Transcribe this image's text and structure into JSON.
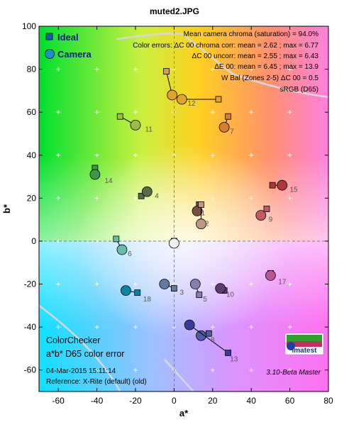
{
  "title": "muted2.JPG",
  "xlabel": "a*",
  "ylabel": "b*",
  "legend": {
    "ideal": "Ideal",
    "camera": "Camera"
  },
  "info_lines": [
    "Mean camera chroma (saturation) = 94.0%",
    "Color errors: ΔC 00 chroma corr:  mean = 2.62 ;  max = 6.77",
    "ΔC 00 uncorr:  mean = 2.55 ;  max = 6.43",
    "ΔE 00:  mean = 6.45 ;  max = 13.9",
    "W Bal (Zones 2-5) ΔC 00 = 0.5",
    "sRGB (D65)"
  ],
  "bottom_left": {
    "line1": "ColorChecker",
    "line2": "a*b* D65 color error",
    "date": "04-Mar-2015 15:11:14",
    "reference": "Reference: X-Rite (default) (old)"
  },
  "version": "3.10-Beta  Master",
  "logo_text": "imatest",
  "chart_data": {
    "type": "scatter",
    "title": "muted2.JPG",
    "xlabel": "a*",
    "ylabel": "b*",
    "xlim": [
      -70,
      80
    ],
    "ylim": [
      -70,
      100
    ],
    "xticks": [
      -60,
      -40,
      -20,
      0,
      20,
      40,
      60,
      80
    ],
    "yticks": [
      -60,
      -40,
      -20,
      0,
      20,
      40,
      60,
      80,
      100
    ],
    "grid": true,
    "legend_position": "top-left",
    "series": [
      {
        "name": "Ideal",
        "marker": "square"
      },
      {
        "name": "Camera",
        "marker": "circle"
      }
    ],
    "patches": [
      {
        "id": "1",
        "ideal": [
          13,
          17
        ],
        "camera": [
          12,
          14
        ],
        "color": "#735244"
      },
      {
        "id": "2",
        "ideal": [
          14,
          17
        ],
        "camera": [
          14,
          8
        ],
        "color": "#c29682"
      },
      {
        "id": "3",
        "ideal": [
          0,
          -22
        ],
        "camera": [
          -5,
          -20
        ],
        "color": "#627a9d"
      },
      {
        "id": "4",
        "ideal": [
          -17,
          21
        ],
        "camera": [
          -14,
          23
        ],
        "color": "#576c43"
      },
      {
        "id": "5",
        "ideal": [
          13,
          -25
        ],
        "camera": [
          11,
          -20
        ],
        "color": "#8580b1"
      },
      {
        "id": "6",
        "ideal": [
          -30,
          1
        ],
        "camera": [
          -27,
          -4
        ],
        "color": "#67bdaa"
      },
      {
        "id": "7",
        "ideal": [
          28,
          58
        ],
        "camera": [
          26,
          53
        ],
        "color": "#d67e2c"
      },
      {
        "id": "8",
        "ideal": [
          18,
          -43
        ],
        "camera": [
          14,
          -44
        ],
        "color": "#505ba6"
      },
      {
        "id": "9",
        "ideal": [
          48,
          15
        ],
        "camera": [
          45,
          12
        ],
        "color": "#c15a63"
      },
      {
        "id": "10",
        "ideal": [
          26,
          -23
        ],
        "camera": [
          24,
          -22
        ],
        "color": "#5e3c6c"
      },
      {
        "id": "11",
        "ideal": [
          -28,
          58
        ],
        "camera": [
          -20,
          54
        ],
        "color": "#9dbc40"
      },
      {
        "id": "12",
        "ideal": [
          -4,
          79
        ],
        "camera": [
          -1,
          68
        ],
        "color": "#e0a32e"
      },
      {
        "id": "12b",
        "ideal": [
          23,
          66
        ],
        "camera": [
          4,
          66
        ],
        "color": "#e0a32e"
      },
      {
        "id": "13",
        "ideal": [
          28,
          -52
        ],
        "camera": [
          8,
          -39
        ],
        "color": "#383d96"
      },
      {
        "id": "14",
        "ideal": [
          -41,
          34
        ],
        "camera": [
          -41,
          31
        ],
        "color": "#469449"
      },
      {
        "id": "15",
        "ideal": [
          51,
          26
        ],
        "camera": [
          56,
          26
        ],
        "color": "#af363c"
      },
      {
        "id": "17",
        "ideal": [
          50,
          -15
        ],
        "camera": [
          50,
          -16
        ],
        "color": "#bb5695"
      },
      {
        "id": "18",
        "ideal": [
          -19,
          -24
        ],
        "camera": [
          -25,
          -23
        ],
        "color": "#0885a1"
      },
      {
        "id": "white",
        "ideal": [
          0,
          0
        ],
        "camera": [
          0,
          -1
        ],
        "color": "#f0f0f0"
      }
    ],
    "labels": [
      {
        "text": "1",
        "a": 14,
        "b": 12
      },
      {
        "text": "2",
        "a": 16,
        "b": 7
      },
      {
        "text": "3",
        "a": 3,
        "b": -25
      },
      {
        "text": "4",
        "a": -10,
        "b": 20
      },
      {
        "text": "5",
        "a": 15,
        "b": -28
      },
      {
        "text": "6",
        "a": -24,
        "b": -7
      },
      {
        "text": "7",
        "a": 29,
        "b": 50
      },
      {
        "text": "8",
        "a": 19,
        "b": -47
      },
      {
        "text": "9",
        "a": 49,
        "b": 9
      },
      {
        "text": "10",
        "a": 27,
        "b": -26
      },
      {
        "text": "11",
        "a": -15,
        "b": 51
      },
      {
        "text": "12",
        "a": 7,
        "b": 63
      },
      {
        "text": "13",
        "a": 29,
        "b": -56
      },
      {
        "text": "14",
        "a": -36,
        "b": 27
      },
      {
        "text": "15",
        "a": 60,
        "b": 23
      },
      {
        "text": "17",
        "a": 54,
        "b": -20
      },
      {
        "text": "18",
        "a": -16,
        "b": -28
      }
    ]
  }
}
